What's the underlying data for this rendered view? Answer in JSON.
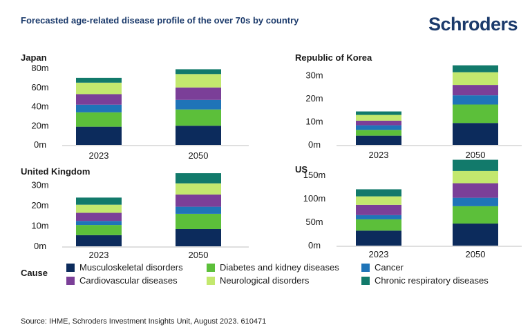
{
  "title": "Forecasted age-related disease profile of the over 70s by country",
  "logo_text": "Schroders",
  "legend_title": "Cause",
  "causes": [
    {
      "name": "Musculoskeletal disorders",
      "color": "#0c2b5c"
    },
    {
      "name": "Diabetes and kidney diseases",
      "color": "#5cbf3a"
    },
    {
      "name": "Cancer",
      "color": "#1f74b8"
    },
    {
      "name": "Cardiovascular diseases",
      "color": "#7b3f98"
    },
    {
      "name": "Neurological disorders",
      "color": "#c3e86e"
    },
    {
      "name": "Chronic respiratory diseases",
      "color": "#127a6b"
    }
  ],
  "source": "Source: IHME, Schroders Investment Insights Unit, August 2023. 610471",
  "chart_data": [
    {
      "type": "bar",
      "stacked": true,
      "title": "Japan",
      "categories": [
        "2023",
        "2050"
      ],
      "ylim": [
        0,
        80
      ],
      "yticks": [
        "0m",
        "20m",
        "40m",
        "60m",
        "80m"
      ],
      "series": [
        {
          "name": "Musculoskeletal disorders",
          "values": [
            19,
            20
          ]
        },
        {
          "name": "Diabetes and kidney diseases",
          "values": [
            15,
            17
          ]
        },
        {
          "name": "Cancer",
          "values": [
            8,
            10
          ]
        },
        {
          "name": "Cardiovascular diseases",
          "values": [
            11,
            13
          ]
        },
        {
          "name": "Neurological disorders",
          "values": [
            12,
            14
          ]
        },
        {
          "name": "Chronic respiratory diseases",
          "values": [
            5,
            5
          ]
        }
      ]
    },
    {
      "type": "bar",
      "stacked": true,
      "title": "Republic of Korea",
      "categories": [
        "2023",
        "2050"
      ],
      "ylim": [
        0,
        35
      ],
      "yticks": [
        "0m",
        "10m",
        "20m",
        "30m"
      ],
      "series": [
        {
          "name": "Musculoskeletal disorders",
          "values": [
            4,
            9.5
          ]
        },
        {
          "name": "Diabetes and kidney diseases",
          "values": [
            2.5,
            8
          ]
        },
        {
          "name": "Cancer",
          "values": [
            2,
            4
          ]
        },
        {
          "name": "Cardiovascular diseases",
          "values": [
            2,
            4.5
          ]
        },
        {
          "name": "Neurological disorders",
          "values": [
            2.5,
            5.5
          ]
        },
        {
          "name": "Chronic respiratory diseases",
          "values": [
            1.5,
            3
          ]
        }
      ]
    },
    {
      "type": "bar",
      "stacked": true,
      "title": "United Kingdom",
      "categories": [
        "2023",
        "2050"
      ],
      "ylim": [
        0,
        35
      ],
      "yticks": [
        "0m",
        "10m",
        "20m",
        "30m"
      ],
      "series": [
        {
          "name": "Musculoskeletal disorders",
          "values": [
            5.5,
            8.5
          ]
        },
        {
          "name": "Diabetes and kidney diseases",
          "values": [
            5,
            7.5
          ]
        },
        {
          "name": "Cancer",
          "values": [
            2,
            3.5
          ]
        },
        {
          "name": "Cardiovascular diseases",
          "values": [
            4,
            6
          ]
        },
        {
          "name": "Neurological disorders",
          "values": [
            4,
            5.5
          ]
        },
        {
          "name": "Chronic respiratory diseases",
          "values": [
            3.5,
            5
          ]
        }
      ]
    },
    {
      "type": "bar",
      "stacked": true,
      "title": "US",
      "categories": [
        "2023",
        "2050"
      ],
      "ylim": [
        0,
        175
      ],
      "yticks": [
        "0m",
        "50m",
        "100m",
        "150m"
      ],
      "series": [
        {
          "name": "Musculoskeletal disorders",
          "values": [
            32,
            47
          ]
        },
        {
          "name": "Diabetes and kidney diseases",
          "values": [
            24,
            37
          ]
        },
        {
          "name": "Cancer",
          "values": [
            9,
            18
          ]
        },
        {
          "name": "Cardiovascular diseases",
          "values": [
            22,
            31
          ]
        },
        {
          "name": "Neurological disorders",
          "values": [
            18,
            26
          ]
        },
        {
          "name": "Chronic respiratory diseases",
          "values": [
            15,
            24
          ]
        }
      ]
    }
  ]
}
